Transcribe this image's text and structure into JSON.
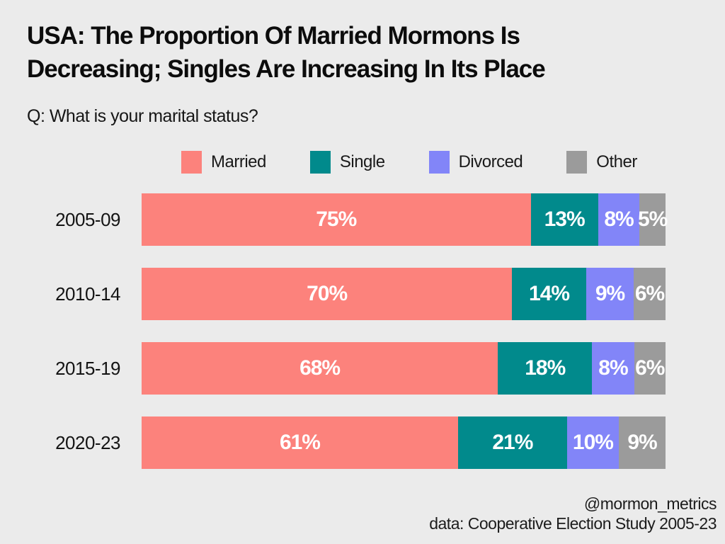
{
  "page": {
    "background": "#EBEBEB"
  },
  "header": {
    "title": "USA: The Proportion Of Married Mormons Is\nDecreasing; Singles Are Increasing In Its Place",
    "subtitle": "Q: What is your marital status?"
  },
  "chart_data": {
    "type": "bar",
    "orientation": "horizontal",
    "stacked": true,
    "unit": "%",
    "categories": [
      "2005-09",
      "2010-14",
      "2015-19",
      "2020-23"
    ],
    "series": [
      {
        "name": "Married",
        "color": "#FC827C",
        "values": [
          75,
          70,
          68,
          61
        ]
      },
      {
        "name": "Single",
        "color": "#018A8C",
        "values": [
          13,
          14,
          18,
          21
        ]
      },
      {
        "name": "Divorced",
        "color": "#8285F8",
        "values": [
          8,
          9,
          8,
          10
        ]
      },
      {
        "name": "Other",
        "color": "#9B9B9B",
        "values": [
          5,
          6,
          6,
          9
        ]
      }
    ],
    "legend_position": "top",
    "value_labels": "inside",
    "value_label_color": "#FFFFFF",
    "xlim": [
      0,
      100
    ],
    "grid": false
  },
  "footer": {
    "handle": "@mormon_metrics",
    "source": "data: Cooperative Election Study 2005-23"
  }
}
